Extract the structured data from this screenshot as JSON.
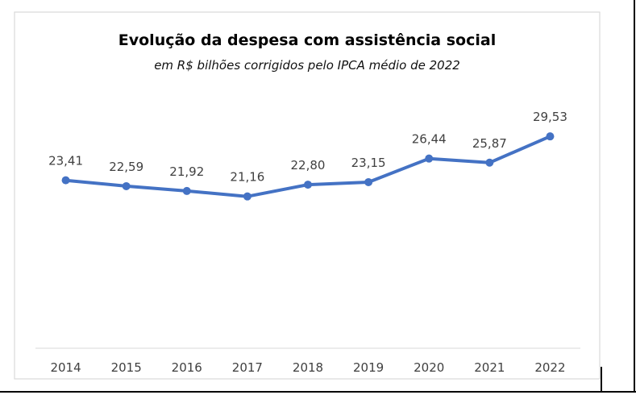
{
  "chart_data": {
    "type": "line",
    "title": "Evolução da despesa com assistência social",
    "subtitle": "em R$ bilhões corrigidos pelo IPCA médio de 2022",
    "categories": [
      "2014",
      "2015",
      "2016",
      "2017",
      "2018",
      "2019",
      "2020",
      "2021",
      "2022"
    ],
    "series": [
      {
        "values": [
          23.41,
          22.59,
          21.92,
          21.16,
          22.8,
          23.15,
          26.44,
          25.87,
          29.53
        ],
        "labels": [
          "23,41",
          "22,59",
          "21,92",
          "21,16",
          "22,80",
          "23,15",
          "26,44",
          "25,87",
          "29,53"
        ],
        "color": "#4472c4"
      }
    ],
    "ylim": [
      0,
      32
    ],
    "grid": false,
    "legend": "none",
    "xlabel": "",
    "ylabel": ""
  }
}
